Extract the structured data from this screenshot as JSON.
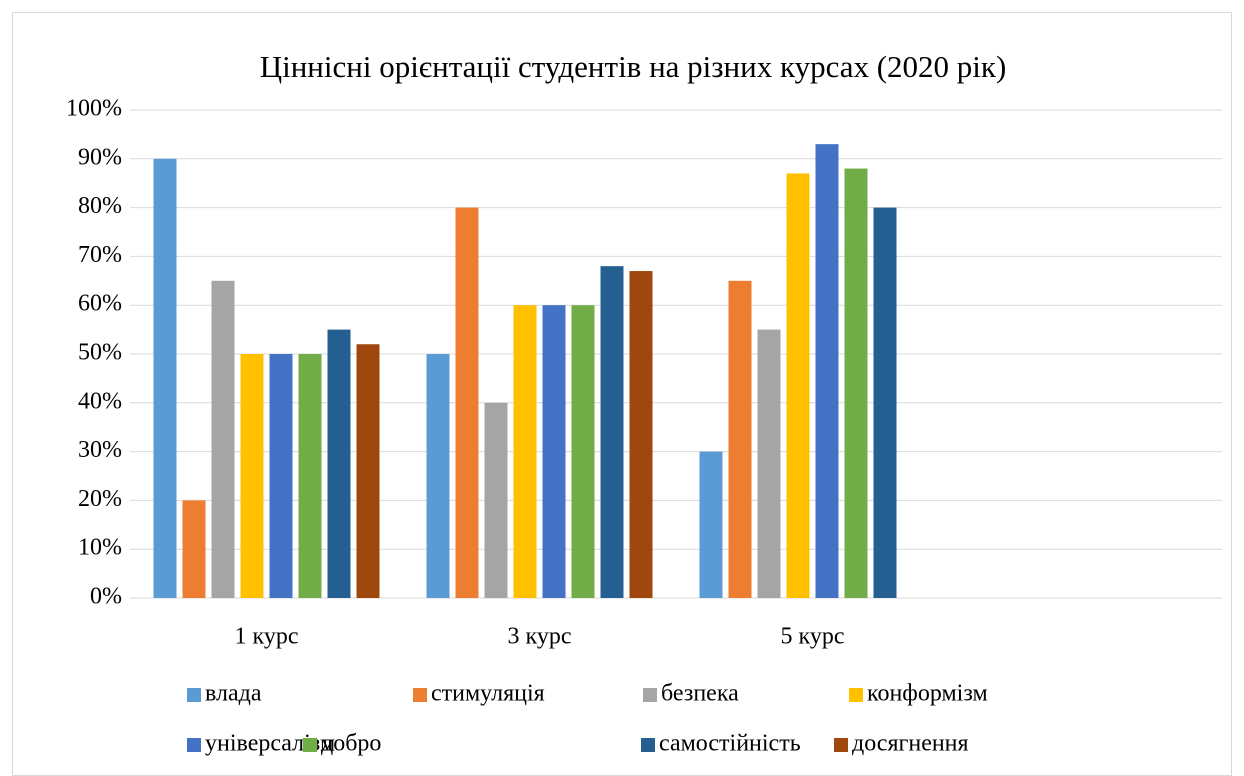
{
  "chart_data": {
    "type": "bar",
    "title": "Ціннісні орієнтації студентів на різних курсах (2020 рік)",
    "categories": [
      "1 курс",
      "3 курс",
      "5 курс",
      null
    ],
    "series": [
      {
        "name": "влада",
        "color": "#5b9bd5",
        "values": [
          90,
          50,
          30,
          null
        ]
      },
      {
        "name": "стимуляція",
        "color": "#ed7d31",
        "values": [
          20,
          80,
          65,
          null
        ]
      },
      {
        "name": "безпека",
        "color": "#a5a5a5",
        "values": [
          65,
          40,
          55,
          null
        ]
      },
      {
        "name": "конформізм",
        "color": "#ffc000",
        "values": [
          50,
          60,
          87,
          null
        ]
      },
      {
        "name": "універсалізм",
        "color": "#4472c4",
        "values": [
          50,
          60,
          93,
          null
        ]
      },
      {
        "name": "добро",
        "color": "#70ad47",
        "values": [
          50,
          60,
          88,
          null
        ]
      },
      {
        "name": "самостійність",
        "color": "#255e91",
        "values": [
          55,
          68,
          80,
          null
        ]
      },
      {
        "name": "досягнення",
        "color": "#9e480e",
        "values": [
          52,
          67,
          null,
          null
        ]
      }
    ],
    "ylim": [
      0,
      100
    ],
    "yticks": [
      {
        "value": 0,
        "label": "0%"
      },
      {
        "value": 10,
        "label": "10%"
      },
      {
        "value": 20,
        "label": "20%"
      },
      {
        "value": 30,
        "label": "30%"
      },
      {
        "value": 40,
        "label": "40%"
      },
      {
        "value": 50,
        "label": "50%"
      },
      {
        "value": 60,
        "label": "60%"
      },
      {
        "value": 70,
        "label": "70%"
      },
      {
        "value": 80,
        "label": "80%"
      },
      {
        "value": 90,
        "label": "90%"
      },
      {
        "value": 100,
        "label": "100%"
      }
    ],
    "grid": true,
    "legend": "bottom"
  }
}
